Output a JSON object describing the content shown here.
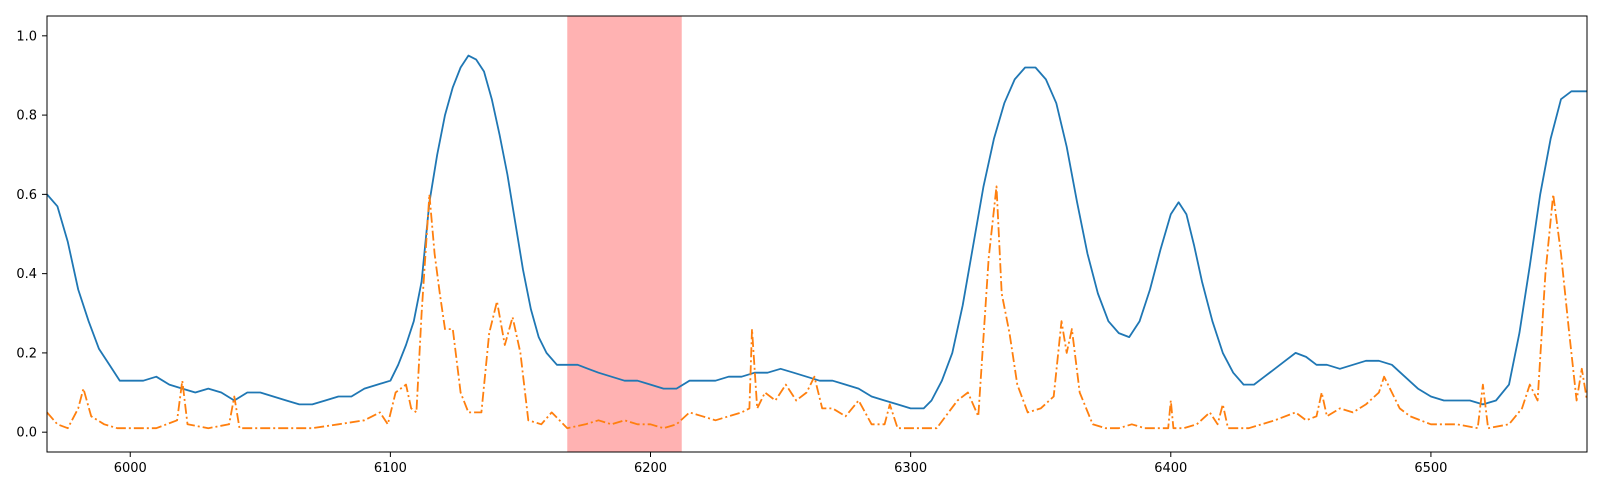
{
  "colors": {
    "series_1": "#1f77b4",
    "series_2": "#ff7f0e",
    "highlight": "#ff6666",
    "axes": "#000000",
    "background": "#ffffff"
  },
  "chart_data": {
    "type": "line",
    "title": "",
    "xlabel": "",
    "ylabel": "",
    "xlim": [
      5968,
      6560
    ],
    "ylim": [
      -0.05,
      1.05
    ],
    "grid": false,
    "legend": "none",
    "xticks": [
      6000,
      6100,
      6200,
      6300,
      6400,
      6500
    ],
    "yticks": [
      0.0,
      0.2,
      0.4,
      0.6,
      0.8,
      1.0
    ],
    "xtick_labels": [
      "6000",
      "6100",
      "6200",
      "6300",
      "6400",
      "6500"
    ],
    "ytick_labels": [
      "0.0",
      "0.2",
      "0.4",
      "0.6",
      "0.8",
      "1.0"
    ],
    "highlight_span": {
      "x_start": 6168,
      "x_end": 6212
    },
    "series": [
      {
        "style": "solid",
        "color": "#1f77b4",
        "points": [
          [
            5968,
            0.6
          ],
          [
            5972,
            0.57
          ],
          [
            5976,
            0.48
          ],
          [
            5980,
            0.36
          ],
          [
            5984,
            0.28
          ],
          [
            5988,
            0.21
          ],
          [
            5992,
            0.17
          ],
          [
            5996,
            0.13
          ],
          [
            6000,
            0.13
          ],
          [
            6005,
            0.13
          ],
          [
            6010,
            0.14
          ],
          [
            6015,
            0.12
          ],
          [
            6020,
            0.11
          ],
          [
            6025,
            0.1
          ],
          [
            6030,
            0.11
          ],
          [
            6035,
            0.1
          ],
          [
            6040,
            0.08
          ],
          [
            6045,
            0.1
          ],
          [
            6050,
            0.1
          ],
          [
            6055,
            0.09
          ],
          [
            6060,
            0.08
          ],
          [
            6065,
            0.07
          ],
          [
            6070,
            0.07
          ],
          [
            6075,
            0.08
          ],
          [
            6080,
            0.09
          ],
          [
            6085,
            0.09
          ],
          [
            6090,
            0.11
          ],
          [
            6095,
            0.12
          ],
          [
            6100,
            0.13
          ],
          [
            6103,
            0.17
          ],
          [
            6106,
            0.22
          ],
          [
            6109,
            0.28
          ],
          [
            6112,
            0.38
          ],
          [
            6115,
            0.58
          ],
          [
            6118,
            0.7
          ],
          [
            6121,
            0.8
          ],
          [
            6124,
            0.87
          ],
          [
            6127,
            0.92
          ],
          [
            6130,
            0.95
          ],
          [
            6133,
            0.94
          ],
          [
            6136,
            0.91
          ],
          [
            6139,
            0.84
          ],
          [
            6142,
            0.75
          ],
          [
            6145,
            0.65
          ],
          [
            6148,
            0.53
          ],
          [
            6151,
            0.41
          ],
          [
            6154,
            0.31
          ],
          [
            6157,
            0.24
          ],
          [
            6160,
            0.2
          ],
          [
            6164,
            0.17
          ],
          [
            6168,
            0.17
          ],
          [
            6172,
            0.17
          ],
          [
            6176,
            0.16
          ],
          [
            6180,
            0.15
          ],
          [
            6185,
            0.14
          ],
          [
            6190,
            0.13
          ],
          [
            6195,
            0.13
          ],
          [
            6200,
            0.12
          ],
          [
            6205,
            0.11
          ],
          [
            6210,
            0.11
          ],
          [
            6215,
            0.13
          ],
          [
            6220,
            0.13
          ],
          [
            6225,
            0.13
          ],
          [
            6230,
            0.14
          ],
          [
            6235,
            0.14
          ],
          [
            6240,
            0.15
          ],
          [
            6245,
            0.15
          ],
          [
            6250,
            0.16
          ],
          [
            6255,
            0.15
          ],
          [
            6260,
            0.14
          ],
          [
            6265,
            0.13
          ],
          [
            6270,
            0.13
          ],
          [
            6275,
            0.12
          ],
          [
            6280,
            0.11
          ],
          [
            6285,
            0.09
          ],
          [
            6290,
            0.08
          ],
          [
            6295,
            0.07
          ],
          [
            6300,
            0.06
          ],
          [
            6305,
            0.06
          ],
          [
            6308,
            0.08
          ],
          [
            6312,
            0.13
          ],
          [
            6316,
            0.2
          ],
          [
            6320,
            0.32
          ],
          [
            6324,
            0.47
          ],
          [
            6328,
            0.62
          ],
          [
            6332,
            0.74
          ],
          [
            6336,
            0.83
          ],
          [
            6340,
            0.89
          ],
          [
            6344,
            0.92
          ],
          [
            6348,
            0.92
          ],
          [
            6352,
            0.89
          ],
          [
            6356,
            0.83
          ],
          [
            6360,
            0.72
          ],
          [
            6364,
            0.58
          ],
          [
            6368,
            0.45
          ],
          [
            6372,
            0.35
          ],
          [
            6376,
            0.28
          ],
          [
            6380,
            0.25
          ],
          [
            6384,
            0.24
          ],
          [
            6388,
            0.28
          ],
          [
            6392,
            0.36
          ],
          [
            6396,
            0.46
          ],
          [
            6400,
            0.55
          ],
          [
            6403,
            0.58
          ],
          [
            6406,
            0.55
          ],
          [
            6409,
            0.47
          ],
          [
            6412,
            0.38
          ],
          [
            6416,
            0.28
          ],
          [
            6420,
            0.2
          ],
          [
            6424,
            0.15
          ],
          [
            6428,
            0.12
          ],
          [
            6432,
            0.12
          ],
          [
            6436,
            0.14
          ],
          [
            6440,
            0.16
          ],
          [
            6444,
            0.18
          ],
          [
            6448,
            0.2
          ],
          [
            6452,
            0.19
          ],
          [
            6456,
            0.17
          ],
          [
            6460,
            0.17
          ],
          [
            6465,
            0.16
          ],
          [
            6470,
            0.17
          ],
          [
            6475,
            0.18
          ],
          [
            6480,
            0.18
          ],
          [
            6485,
            0.17
          ],
          [
            6490,
            0.14
          ],
          [
            6495,
            0.11
          ],
          [
            6500,
            0.09
          ],
          [
            6505,
            0.08
          ],
          [
            6510,
            0.08
          ],
          [
            6515,
            0.08
          ],
          [
            6520,
            0.07
          ],
          [
            6525,
            0.08
          ],
          [
            6530,
            0.12
          ],
          [
            6534,
            0.25
          ],
          [
            6538,
            0.42
          ],
          [
            6542,
            0.6
          ],
          [
            6546,
            0.74
          ],
          [
            6550,
            0.84
          ],
          [
            6554,
            0.86
          ],
          [
            6558,
            0.86
          ],
          [
            6560,
            0.86
          ]
        ]
      },
      {
        "style": "dash-dot",
        "color": "#ff7f0e",
        "points": [
          [
            5968,
            0.05
          ],
          [
            5972,
            0.02
          ],
          [
            5976,
            0.01
          ],
          [
            5980,
            0.06
          ],
          [
            5982,
            0.11
          ],
          [
            5985,
            0.04
          ],
          [
            5990,
            0.02
          ],
          [
            5995,
            0.01
          ],
          [
            6000,
            0.01
          ],
          [
            6010,
            0.01
          ],
          [
            6018,
            0.03
          ],
          [
            6020,
            0.13
          ],
          [
            6022,
            0.02
          ],
          [
            6030,
            0.01
          ],
          [
            6038,
            0.02
          ],
          [
            6040,
            0.09
          ],
          [
            6042,
            0.01
          ],
          [
            6050,
            0.01
          ],
          [
            6060,
            0.01
          ],
          [
            6070,
            0.01
          ],
          [
            6080,
            0.02
          ],
          [
            6090,
            0.03
          ],
          [
            6096,
            0.05
          ],
          [
            6099,
            0.02
          ],
          [
            6102,
            0.1
          ],
          [
            6106,
            0.12
          ],
          [
            6108,
            0.06
          ],
          [
            6110,
            0.05
          ],
          [
            6112,
            0.3
          ],
          [
            6115,
            0.6
          ],
          [
            6117,
            0.45
          ],
          [
            6119,
            0.35
          ],
          [
            6121,
            0.26
          ],
          [
            6124,
            0.26
          ],
          [
            6127,
            0.1
          ],
          [
            6130,
            0.05
          ],
          [
            6135,
            0.05
          ],
          [
            6138,
            0.25
          ],
          [
            6141,
            0.33
          ],
          [
            6144,
            0.22
          ],
          [
            6147,
            0.29
          ],
          [
            6150,
            0.2
          ],
          [
            6153,
            0.03
          ],
          [
            6158,
            0.02
          ],
          [
            6162,
            0.05
          ],
          [
            6165,
            0.03
          ],
          [
            6168,
            0.01
          ],
          [
            6175,
            0.02
          ],
          [
            6180,
            0.03
          ],
          [
            6185,
            0.02
          ],
          [
            6190,
            0.03
          ],
          [
            6195,
            0.02
          ],
          [
            6200,
            0.02
          ],
          [
            6205,
            0.01
          ],
          [
            6210,
            0.02
          ],
          [
            6215,
            0.05
          ],
          [
            6220,
            0.04
          ],
          [
            6225,
            0.03
          ],
          [
            6230,
            0.04
          ],
          [
            6235,
            0.05
          ],
          [
            6238,
            0.06
          ],
          [
            6239,
            0.26
          ],
          [
            6241,
            0.06
          ],
          [
            6244,
            0.1
          ],
          [
            6248,
            0.08
          ],
          [
            6252,
            0.12
          ],
          [
            6256,
            0.08
          ],
          [
            6260,
            0.1
          ],
          [
            6263,
            0.14
          ],
          [
            6266,
            0.06
          ],
          [
            6270,
            0.06
          ],
          [
            6275,
            0.04
          ],
          [
            6280,
            0.08
          ],
          [
            6285,
            0.02
          ],
          [
            6290,
            0.02
          ],
          [
            6292,
            0.07
          ],
          [
            6295,
            0.01
          ],
          [
            6300,
            0.01
          ],
          [
            6310,
            0.01
          ],
          [
            6318,
            0.08
          ],
          [
            6322,
            0.1
          ],
          [
            6326,
            0.04
          ],
          [
            6330,
            0.44
          ],
          [
            6333,
            0.62
          ],
          [
            6335,
            0.35
          ],
          [
            6338,
            0.25
          ],
          [
            6341,
            0.12
          ],
          [
            6345,
            0.05
          ],
          [
            6350,
            0.06
          ],
          [
            6355,
            0.09
          ],
          [
            6358,
            0.28
          ],
          [
            6360,
            0.2
          ],
          [
            6362,
            0.26
          ],
          [
            6365,
            0.1
          ],
          [
            6370,
            0.02
          ],
          [
            6375,
            0.01
          ],
          [
            6380,
            0.01
          ],
          [
            6385,
            0.02
          ],
          [
            6390,
            0.01
          ],
          [
            6395,
            0.01
          ],
          [
            6399,
            0.01
          ],
          [
            6400,
            0.08
          ],
          [
            6401,
            0.01
          ],
          [
            6405,
            0.01
          ],
          [
            6410,
            0.02
          ],
          [
            6415,
            0.05
          ],
          [
            6418,
            0.02
          ],
          [
            6420,
            0.07
          ],
          [
            6422,
            0.01
          ],
          [
            6430,
            0.01
          ],
          [
            6440,
            0.03
          ],
          [
            6448,
            0.05
          ],
          [
            6452,
            0.03
          ],
          [
            6456,
            0.04
          ],
          [
            6458,
            0.1
          ],
          [
            6460,
            0.04
          ],
          [
            6465,
            0.06
          ],
          [
            6470,
            0.05
          ],
          [
            6475,
            0.07
          ],
          [
            6480,
            0.1
          ],
          [
            6482,
            0.14
          ],
          [
            6485,
            0.1
          ],
          [
            6488,
            0.06
          ],
          [
            6492,
            0.04
          ],
          [
            6500,
            0.02
          ],
          [
            6510,
            0.02
          ],
          [
            6518,
            0.01
          ],
          [
            6520,
            0.12
          ],
          [
            6522,
            0.01
          ],
          [
            6530,
            0.02
          ],
          [
            6535,
            0.06
          ],
          [
            6538,
            0.12
          ],
          [
            6541,
            0.08
          ],
          [
            6544,
            0.4
          ],
          [
            6547,
            0.6
          ],
          [
            6550,
            0.45
          ],
          [
            6553,
            0.26
          ],
          [
            6556,
            0.08
          ],
          [
            6558,
            0.16
          ],
          [
            6560,
            0.08
          ]
        ]
      }
    ]
  }
}
